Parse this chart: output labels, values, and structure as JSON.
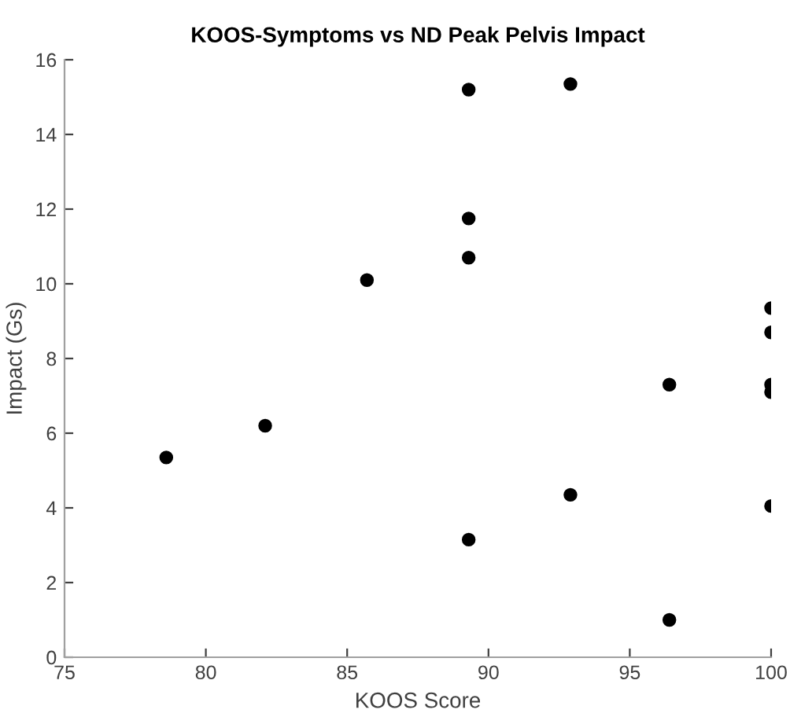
{
  "chart_data": {
    "type": "scatter",
    "title": "KOOS-Symptoms vs ND Peak Pelvis Impact",
    "xlabel": "KOOS Score",
    "ylabel": "Impact (Gs)",
    "x": [
      78.6,
      82.1,
      85.7,
      89.3,
      89.3,
      89.3,
      89.3,
      92.9,
      92.9,
      96.4,
      96.4,
      100,
      100,
      100,
      100,
      100
    ],
    "values": [
      5.35,
      6.2,
      10.1,
      15.2,
      11.75,
      10.7,
      3.15,
      15.35,
      4.35,
      7.3,
      1.0,
      9.35,
      8.7,
      7.3,
      7.1,
      4.05
    ],
    "color": "#000000",
    "marker": "circle",
    "xlim": [
      75,
      100
    ],
    "xticks": [
      75,
      80,
      85,
      90,
      95,
      100
    ],
    "ylim": [
      0,
      16
    ],
    "yticks": [
      0,
      2,
      4,
      6,
      8,
      10,
      12,
      14,
      16
    ],
    "grid": false,
    "legend": false
  }
}
